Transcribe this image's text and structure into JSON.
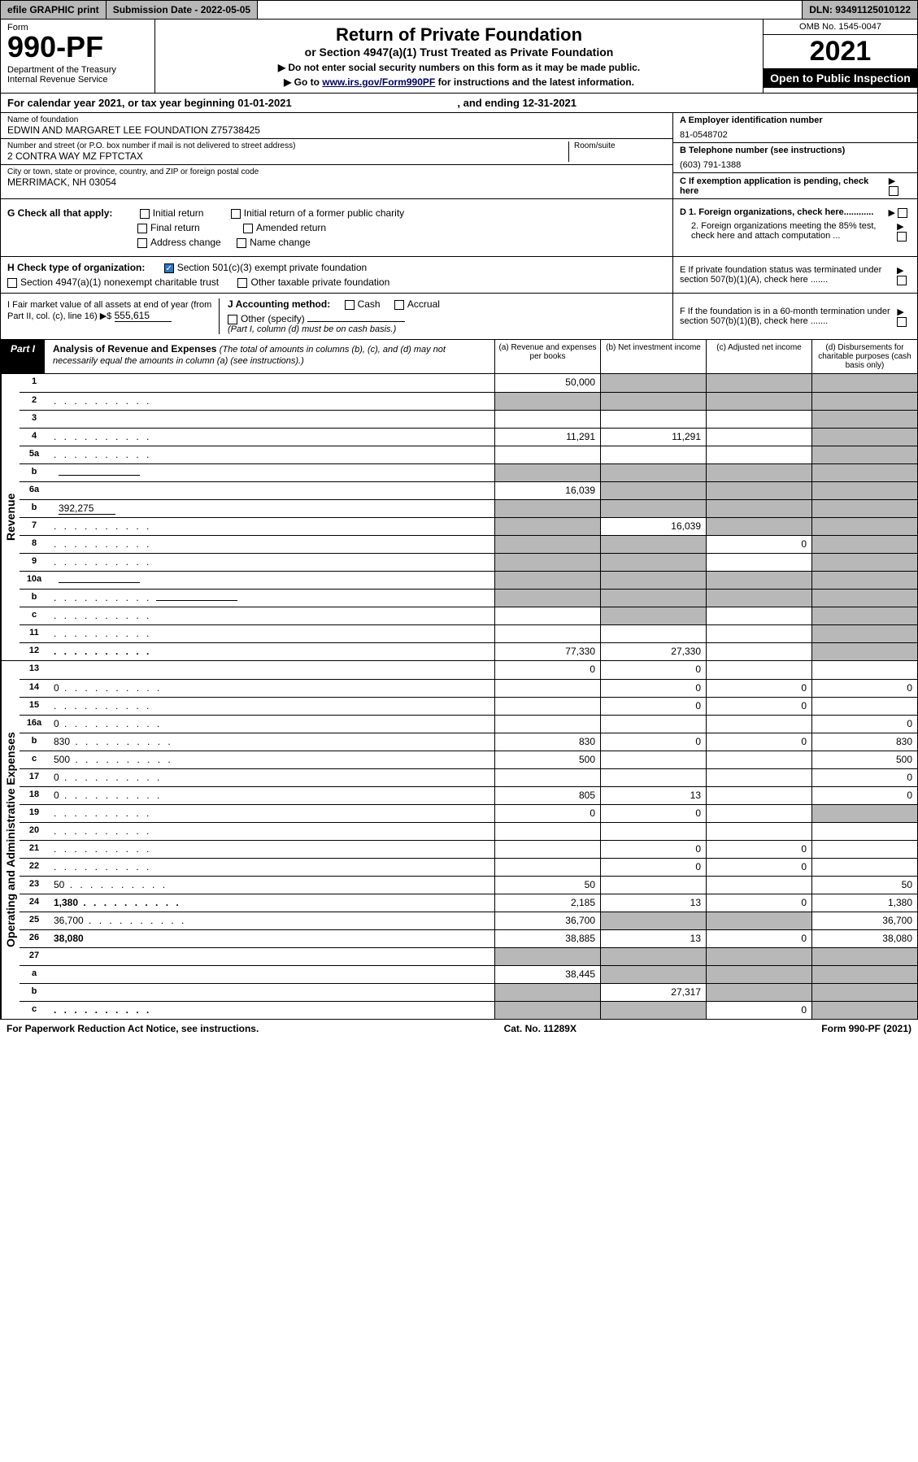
{
  "topbar": {
    "efile": "efile GRAPHIC print",
    "subdate_label": "Submission Date - 2022-05-05",
    "dln": "DLN: 93491125010122"
  },
  "header": {
    "form_label": "Form",
    "form_no": "990-PF",
    "dept": "Department of the Treasury\nInternal Revenue Service",
    "title": "Return of Private Foundation",
    "sub": "or Section 4947(a)(1) Trust Treated as Private Foundation",
    "note1": "▶ Do not enter social security numbers on this form as it may be made public.",
    "note2": "▶ Go to www.irs.gov/Form990PF for instructions and the latest information.",
    "link": "www.irs.gov/Form990PF",
    "omb": "OMB No. 1545-0047",
    "year": "2021",
    "open": "Open to Public Inspection"
  },
  "calendar": {
    "text": "For calendar year 2021, or tax year beginning 01-01-2021",
    "ending": ", and ending 12-31-2021"
  },
  "info": {
    "name_label": "Name of foundation",
    "name": "EDWIN AND MARGARET LEE FOUNDATION Z75738425",
    "street_label": "Number and street (or P.O. box number if mail is not delivered to street address)",
    "street": "2 CONTRA WAY MZ FPTCTAX",
    "room_label": "Room/suite",
    "city_label": "City or town, state or province, country, and ZIP or foreign postal code",
    "city": "MERRIMACK, NH  03054",
    "ein_label": "A Employer identification number",
    "ein": "81-0548702",
    "phone_label": "B Telephone number (see instructions)",
    "phone": "(603) 791-1388",
    "exempt_label": "C If exemption application is pending, check here"
  },
  "checks": {
    "g_label": "G Check all that apply:",
    "initial": "Initial return",
    "initial_former": "Initial return of a former public charity",
    "final": "Final return",
    "amended": "Amended return",
    "address": "Address change",
    "name": "Name change",
    "h_label": "H Check type of organization:",
    "h1": "Section 501(c)(3) exempt private foundation",
    "h2": "Section 4947(a)(1) nonexempt charitable trust",
    "h3": "Other taxable private foundation",
    "i_label": "I Fair market value of all assets at end of year (from Part II, col. (c), line 16) ▶$",
    "i_value": "555,615",
    "j_label": "J Accounting method:",
    "j_cash": "Cash",
    "j_accrual": "Accrual",
    "j_other": "Other (specify)",
    "j_note": "(Part I, column (d) must be on cash basis.)",
    "d1": "D 1. Foreign organizations, check here............",
    "d2": "2. Foreign organizations meeting the 85% test, check here and attach computation ...",
    "e": "E  If private foundation status was terminated under section 507(b)(1)(A), check here .......",
    "f": "F  If the foundation is in a 60-month termination under section 507(b)(1)(B), check here .......",
    "arrow": "▶"
  },
  "part1": {
    "label": "Part I",
    "title": "Analysis of Revenue and Expenses",
    "subtitle": "(The total of amounts in columns (b), (c), and (d) may not necessarily equal the amounts in column (a) (see instructions).)",
    "cols": {
      "a": "(a) Revenue and expenses per books",
      "b": "(b) Net investment income",
      "c": "(c) Adjusted net income",
      "d": "(d) Disbursements for charitable purposes (cash basis only)"
    }
  },
  "sidelabels": {
    "revenue": "Revenue",
    "expenses": "Operating and Administrative Expenses"
  },
  "rows": [
    {
      "n": "1",
      "d": "",
      "a": "50,000",
      "b": "",
      "c": "",
      "sb": true,
      "sc": true,
      "sd": true
    },
    {
      "n": "2",
      "d": "",
      "dots": true,
      "a": "",
      "b": "",
      "c": "",
      "sa": true,
      "sb": true,
      "sc": true,
      "sd": true
    },
    {
      "n": "3",
      "d": "",
      "a": "",
      "b": "",
      "c": "",
      "sd": true
    },
    {
      "n": "4",
      "d": "",
      "dots": true,
      "a": "11,291",
      "b": "11,291",
      "c": "",
      "sd": true
    },
    {
      "n": "5a",
      "d": "",
      "dots": true,
      "a": "",
      "b": "",
      "c": "",
      "sd": true
    },
    {
      "n": "b",
      "d": "",
      "a": "",
      "b": "",
      "c": "",
      "sa": true,
      "sb": true,
      "sc": true,
      "sd": true,
      "inline": true
    },
    {
      "n": "6a",
      "d": "",
      "a": "16,039",
      "b": "",
      "c": "",
      "sb": true,
      "sc": true,
      "sd": true
    },
    {
      "n": "b",
      "d": "",
      "inline_val": "392,275",
      "a": "",
      "b": "",
      "c": "",
      "sa": true,
      "sb": true,
      "sc": true,
      "sd": true
    },
    {
      "n": "7",
      "d": "",
      "dots": true,
      "a": "",
      "b": "16,039",
      "c": "",
      "sa": true,
      "sc": true,
      "sd": true
    },
    {
      "n": "8",
      "d": "",
      "dots": true,
      "a": "",
      "b": "",
      "c": "0",
      "sa": true,
      "sb": true,
      "sd": true
    },
    {
      "n": "9",
      "d": "",
      "dots": true,
      "a": "",
      "b": "",
      "c": "",
      "sa": true,
      "sb": true,
      "sd": true
    },
    {
      "n": "10a",
      "d": "",
      "inline": true,
      "a": "",
      "b": "",
      "c": "",
      "sa": true,
      "sb": true,
      "sc": true,
      "sd": true
    },
    {
      "n": "b",
      "d": "",
      "dots": true,
      "inline": true,
      "a": "",
      "b": "",
      "c": "",
      "sa": true,
      "sb": true,
      "sc": true,
      "sd": true
    },
    {
      "n": "c",
      "d": "",
      "dots": true,
      "a": "",
      "b": "",
      "c": "",
      "sb": true,
      "sd": true
    },
    {
      "n": "11",
      "d": "",
      "dots": true,
      "a": "",
      "b": "",
      "c": "",
      "sd": true
    },
    {
      "n": "12",
      "d": "",
      "dots": true,
      "bold": true,
      "a": "77,330",
      "b": "27,330",
      "c": "",
      "sd": true
    }
  ],
  "exp_rows": [
    {
      "n": "13",
      "d": "",
      "a": "0",
      "b": "0",
      "c": ""
    },
    {
      "n": "14",
      "d": "0",
      "dots": true,
      "a": "",
      "b": "0",
      "c": "0"
    },
    {
      "n": "15",
      "d": "",
      "dots": true,
      "a": "",
      "b": "0",
      "c": "0"
    },
    {
      "n": "16a",
      "d": "0",
      "dots": true,
      "a": "",
      "b": "",
      "c": ""
    },
    {
      "n": "b",
      "d": "830",
      "dots": true,
      "a": "830",
      "b": "0",
      "c": "0"
    },
    {
      "n": "c",
      "d": "500",
      "dots": true,
      "a": "500",
      "b": "",
      "c": ""
    },
    {
      "n": "17",
      "d": "0",
      "dots": true,
      "a": "",
      "b": "",
      "c": ""
    },
    {
      "n": "18",
      "d": "0",
      "dots": true,
      "a": "805",
      "b": "13",
      "c": ""
    },
    {
      "n": "19",
      "d": "",
      "dots": true,
      "a": "0",
      "b": "0",
      "c": "",
      "sd": true
    },
    {
      "n": "20",
      "d": "",
      "dots": true,
      "a": "",
      "b": "",
      "c": ""
    },
    {
      "n": "21",
      "d": "",
      "dots": true,
      "a": "",
      "b": "0",
      "c": "0"
    },
    {
      "n": "22",
      "d": "",
      "dots": true,
      "a": "",
      "b": "0",
      "c": "0"
    },
    {
      "n": "23",
      "d": "50",
      "dots": true,
      "a": "50",
      "b": "",
      "c": ""
    },
    {
      "n": "24",
      "d": "1,380",
      "dots": true,
      "bold": true,
      "a": "2,185",
      "b": "13",
      "c": "0"
    },
    {
      "n": "25",
      "d": "36,700",
      "dots": true,
      "a": "36,700",
      "b": "",
      "c": "",
      "sb": true,
      "sc": true
    },
    {
      "n": "26",
      "d": "38,080",
      "bold": true,
      "a": "38,885",
      "b": "13",
      "c": "0"
    },
    {
      "n": "27",
      "d": "",
      "a": "",
      "b": "",
      "c": "",
      "sa": true,
      "sb": true,
      "sc": true,
      "sd": true
    },
    {
      "n": "a",
      "d": "",
      "bold": true,
      "a": "38,445",
      "b": "",
      "c": "",
      "sb": true,
      "sc": true,
      "sd": true
    },
    {
      "n": "b",
      "d": "",
      "bold": true,
      "a": "",
      "b": "27,317",
      "c": "",
      "sa": true,
      "sc": true,
      "sd": true
    },
    {
      "n": "c",
      "d": "",
      "dots": true,
      "bold": true,
      "a": "",
      "b": "",
      "c": "0",
      "sa": true,
      "sb": true,
      "sd": true
    }
  ],
  "footer": {
    "left": "For Paperwork Reduction Act Notice, see instructions.",
    "mid": "Cat. No. 11289X",
    "right": "Form 990-PF (2021)"
  },
  "colors": {
    "shade": "#b8b8b8",
    "link": "#0020aa",
    "check": "#2878c8"
  }
}
